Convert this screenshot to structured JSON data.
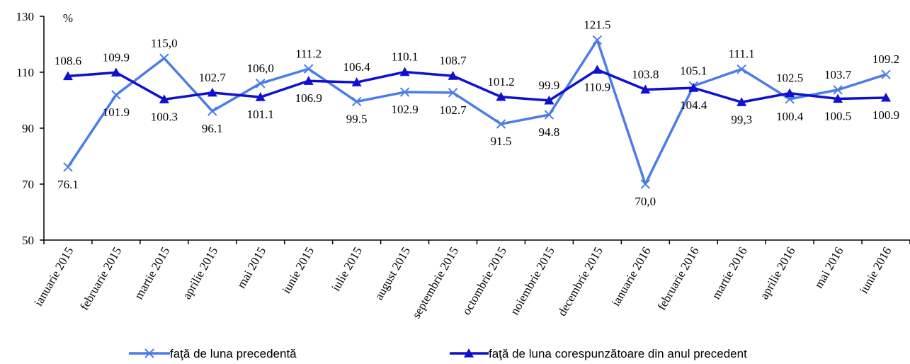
{
  "chart_data": {
    "type": "line",
    "ylabel": "%",
    "ylim": [
      50,
      130
    ],
    "yticks": [
      "50",
      "70",
      "90",
      "110",
      "130"
    ],
    "grid": false,
    "legend_position": "bottom",
    "categories": [
      "ianuarie 2015",
      "februarie 2015",
      "martie 2015",
      "aprilie 2015",
      "mai 2015",
      "iunie 2015",
      "iulie 2015",
      "august 2015",
      "septembrie 2015",
      "octombrie 2015",
      "noiembrie 2015",
      "decembrie 2015",
      "ianuarie 2016",
      "februarie 2016",
      "martie 2016",
      "aprilie 2016",
      "mai 2016",
      "iunie 2016"
    ],
    "series": [
      {
        "name": "faţă de luna precedentă",
        "color": "#4a7de8",
        "marker": "x",
        "values": [
          76.1,
          101.9,
          115.0,
          96.1,
          106.0,
          111.2,
          99.5,
          102.9,
          102.7,
          91.5,
          94.8,
          121.5,
          70.0,
          105.1,
          111.1,
          100.4,
          103.7,
          109.2
        ],
        "labels": [
          "76.1",
          "101.9",
          "115,0",
          "96.1",
          "106,0",
          "111.2",
          "99.5",
          "102.9",
          "102.7",
          "91.5",
          "94.8",
          "121.5",
          "70,0",
          "105.1",
          "111.1",
          "100.4",
          "103.7",
          "109.2"
        ]
      },
      {
        "name": "faţă de luna corespunzătoare din anul precedent",
        "color": "#1010d0",
        "marker": "triangle",
        "values": [
          108.6,
          109.9,
          100.3,
          102.7,
          101.1,
          106.9,
          106.4,
          110.1,
          108.7,
          101.2,
          99.9,
          110.9,
          103.8,
          104.4,
          99.3,
          102.5,
          100.5,
          100.9
        ],
        "labels": [
          "108.6",
          "109.9",
          "100.3",
          "102.7",
          "101.1",
          "106.9",
          "106.4",
          "110.1",
          "108.7",
          "101.2",
          "99.9",
          "110.9",
          "103.8",
          "104.4",
          "99,3",
          "102.5",
          "100.5",
          "100.9"
        ]
      }
    ]
  }
}
